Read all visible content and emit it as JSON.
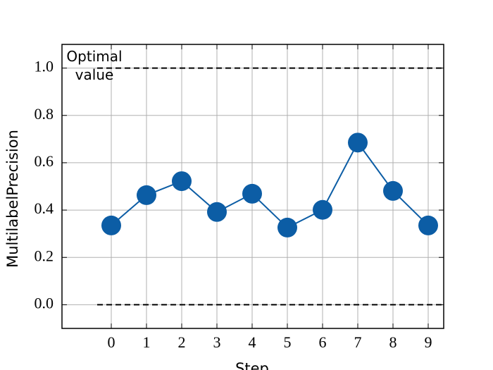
{
  "chart_data": {
    "type": "line",
    "x_label": "Step",
    "y_label": "MultilabelPrecision",
    "x": [
      0,
      1,
      2,
      3,
      4,
      5,
      6,
      7,
      8,
      9
    ],
    "series": [
      {
        "name": "MultilabelPrecision",
        "color": "#0c5da5",
        "values": [
          0.335,
          0.463,
          0.522,
          0.392,
          0.469,
          0.326,
          0.401,
          0.685,
          0.481,
          0.335
        ]
      }
    ],
    "xlim": [
      -1.4,
      9.44
    ],
    "ylim": [
      -0.1,
      1.1
    ],
    "xticks": [
      0,
      1,
      2,
      3,
      4,
      5,
      6,
      7,
      8,
      9
    ],
    "yticks": [
      {
        "value": 0,
        "label": "0.0"
      },
      0.2,
      0.4,
      0.6,
      0.8,
      {
        "value": 1,
        "label": "1.0"
      }
    ],
    "grid": true,
    "reference_lines": [
      {
        "value": 1,
        "label": "Optimal value"
      },
      {
        "value": 0
      }
    ]
  }
}
